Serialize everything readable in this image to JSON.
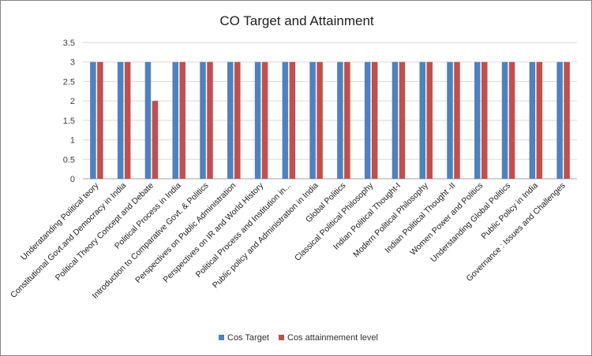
{
  "chart_data": {
    "type": "bar",
    "title": "CO Target and Attainment",
    "xlabel": "",
    "ylabel": "",
    "ylim": [
      0,
      3.5
    ],
    "yticks": [
      0,
      0.5,
      1,
      1.5,
      2,
      2.5,
      3,
      3.5
    ],
    "ytick_labels": [
      "0",
      "0.5",
      "1",
      "1.5",
      "2",
      "2.5",
      "3",
      "3.5"
    ],
    "grid": true,
    "legend_position": "bottom",
    "categories": [
      "Underatanding  Political  teory",
      "Constitutional Govt.and Democracy in India",
      "Political Theory Concept and Debate",
      "Political Process in India",
      "Introduction to Comparative Govt. & Politics",
      "Perspectives on Public Administration",
      "Perspectives on IR and World History",
      "Political Process and Institution in...",
      "Public policy and Administration in India",
      "Global Politics",
      "Classical Political Philosophy",
      "Indian Political Thought-I",
      "Modern Political Philosophy",
      "Indian Political Thought -II",
      "Women Power and Politics",
      "Understanding Global Politics",
      "Public Policy in India",
      "Governance : Issues and Challenges"
    ],
    "series": [
      {
        "name": "Cos Target",
        "color": "#4F81BD",
        "values": [
          3,
          3,
          3,
          3,
          3,
          3,
          3,
          3,
          3,
          3,
          3,
          3,
          3,
          3,
          3,
          3,
          3,
          3
        ]
      },
      {
        "name": "Cos attainmement level",
        "color": "#C0504D",
        "values": [
          3,
          3,
          2,
          3,
          3,
          3,
          3,
          3,
          3,
          3,
          3,
          3,
          3,
          3,
          3,
          3,
          3,
          3
        ]
      }
    ]
  }
}
